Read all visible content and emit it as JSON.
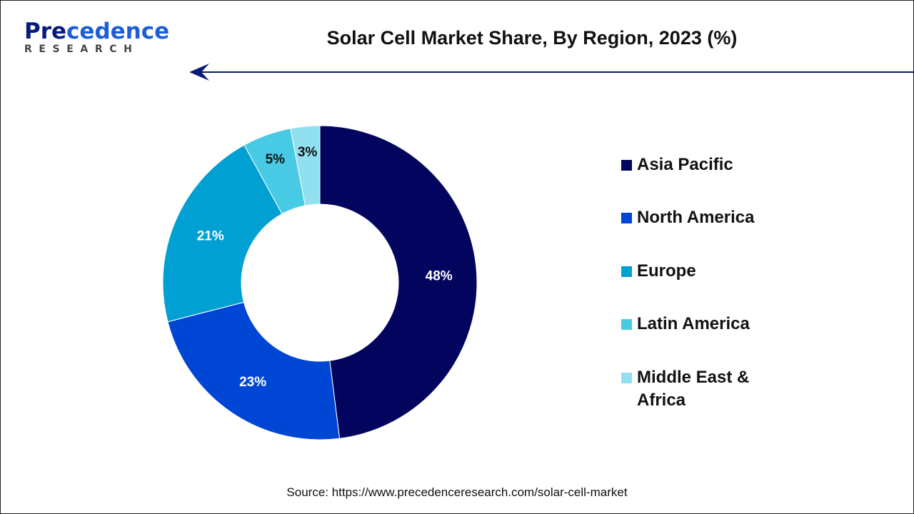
{
  "logo": {
    "main_dark": "Pre",
    "main_blue": "cedence",
    "sub": "RESEARCH"
  },
  "chart_data": {
    "type": "pie",
    "variant": "donut",
    "title": "Solar Cell Market Share, By Region, 2023 (%)",
    "categories": [
      "Asia Pacific",
      "North America",
      "Europe",
      "Latin America",
      "Middle East & Africa"
    ],
    "values": [
      48,
      23,
      21,
      5,
      3
    ],
    "data_labels": [
      "48%",
      "23%",
      "21%",
      "5%",
      "3%"
    ],
    "colors": [
      "#03045e",
      "#0046d5",
      "#00a0d2",
      "#48cae4",
      "#90e0ef"
    ],
    "label_colors": [
      "#ffffff",
      "#ffffff",
      "#ffffff",
      "#111111",
      "#111111"
    ],
    "legend_position": "right"
  },
  "source": "Source: https://www.precedenceresearch.com/solar-cell-market"
}
